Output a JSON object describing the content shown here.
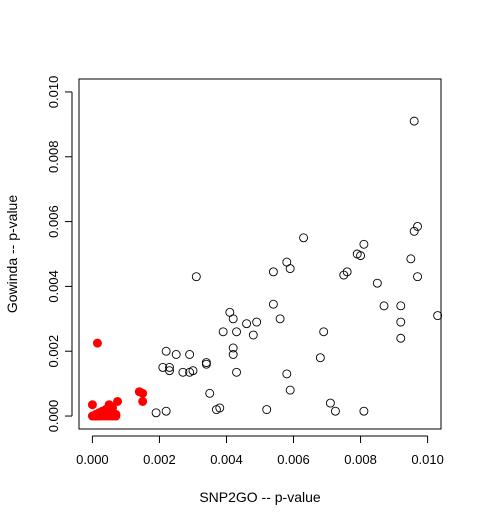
{
  "chart_data": {
    "type": "scatter",
    "title": "",
    "xlabel": "SNP2GO -- p-value",
    "ylabel": "Gowinda -- p-value",
    "xlim": [
      -0.0004,
      0.0104
    ],
    "ylim": [
      -0.0004,
      0.0104
    ],
    "x_ticks": [
      0.0,
      0.002,
      0.004,
      0.006,
      0.008,
      0.01
    ],
    "x_tick_labels": [
      "0.000",
      "0.002",
      "0.004",
      "0.006",
      "0.008",
      "0.010"
    ],
    "y_ticks": [
      0.0,
      0.002,
      0.004,
      0.006,
      0.008,
      0.01
    ],
    "y_tick_labels": [
      "0.000",
      "0.002",
      "0.004",
      "0.006",
      "0.008",
      "0.010"
    ],
    "grid": false,
    "series": [
      {
        "marker": "open-circle",
        "color": "#000000",
        "points": [
          [
            0.0096,
            0.0091
          ],
          [
            0.0103,
            0.0031
          ],
          [
            0.0097,
            0.00585
          ],
          [
            0.0096,
            0.0057
          ],
          [
            0.0095,
            0.00485
          ],
          [
            0.0097,
            0.0043
          ],
          [
            0.0092,
            0.0034
          ],
          [
            0.0092,
            0.0029
          ],
          [
            0.0092,
            0.0024
          ],
          [
            0.0087,
            0.0034
          ],
          [
            0.0085,
            0.0041
          ],
          [
            0.0081,
            0.0053
          ],
          [
            0.0079,
            0.005
          ],
          [
            0.008,
            0.00495
          ],
          [
            0.0076,
            0.00445
          ],
          [
            0.0075,
            0.00435
          ],
          [
            0.0081,
            0.00015
          ],
          [
            0.00725,
            0.00015
          ],
          [
            0.0071,
            0.0004
          ],
          [
            0.0069,
            0.0026
          ],
          [
            0.0068,
            0.0018
          ],
          [
            0.0063,
            0.0055
          ],
          [
            0.0059,
            0.00455
          ],
          [
            0.0058,
            0.00475
          ],
          [
            0.0054,
            0.00445
          ],
          [
            0.0059,
            0.0008
          ],
          [
            0.0058,
            0.0013
          ],
          [
            0.0056,
            0.003
          ],
          [
            0.0054,
            0.00345
          ],
          [
            0.0052,
            0.0002
          ],
          [
            0.0049,
            0.0029
          ],
          [
            0.0048,
            0.0025
          ],
          [
            0.0046,
            0.00285
          ],
          [
            0.0043,
            0.0026
          ],
          [
            0.0042,
            0.003
          ],
          [
            0.0041,
            0.0032
          ],
          [
            0.0042,
            0.0021
          ],
          [
            0.0042,
            0.0019
          ],
          [
            0.0043,
            0.00135
          ],
          [
            0.0039,
            0.0026
          ],
          [
            0.0031,
            0.0043
          ],
          [
            0.0034,
            0.00165
          ],
          [
            0.0034,
            0.0016
          ],
          [
            0.0035,
            0.0007
          ],
          [
            0.0038,
            0.00025
          ],
          [
            0.0037,
            0.0002
          ],
          [
            0.0029,
            0.0019
          ],
          [
            0.003,
            0.0014
          ],
          [
            0.0029,
            0.00135
          ],
          [
            0.0027,
            0.00135
          ],
          [
            0.0025,
            0.0019
          ],
          [
            0.0023,
            0.0015
          ],
          [
            0.0023,
            0.0014
          ],
          [
            0.0022,
            0.002
          ],
          [
            0.0021,
            0.0015
          ],
          [
            0.0022,
            0.00015
          ],
          [
            0.0019,
            0.0001
          ]
        ]
      },
      {
        "marker": "filled-circle",
        "color": "#ff0000",
        "points": [
          [
            0.00015,
            0.00225
          ],
          [
            0.00075,
            0.00045
          ],
          [
            0.0014,
            0.00075
          ],
          [
            0.0015,
            0.0007
          ],
          [
            0.0015,
            0.00045
          ],
          [
            0.0,
            0.00035
          ],
          [
            0.0005,
            0.00035
          ],
          [
            0.00055,
            0.0003
          ],
          [
            0.0006,
            0.00025
          ],
          [
            0.0004,
            0.0002
          ],
          [
            0.0003,
            0.00015
          ],
          [
            0.0002,
            0.0001
          ],
          [
            0.0006,
            0.0001
          ],
          [
            0.0007,
            5e-05
          ],
          [
            0.0001,
            5e-05
          ],
          [
            0.0005,
            5e-05
          ],
          [
            0.0,
            0.0
          ],
          [
            5e-05,
            0.0
          ],
          [
            0.0001,
            0.0
          ],
          [
            0.00015,
            0.0
          ],
          [
            0.0002,
            0.0
          ],
          [
            0.0003,
            0.0
          ],
          [
            0.0004,
            0.0
          ],
          [
            0.0005,
            0.0
          ],
          [
            0.0006,
            0.0
          ],
          [
            0.0007,
            0.0
          ],
          [
            0.00035,
            5e-05
          ],
          [
            0.00025,
            5e-05
          ]
        ]
      }
    ]
  }
}
